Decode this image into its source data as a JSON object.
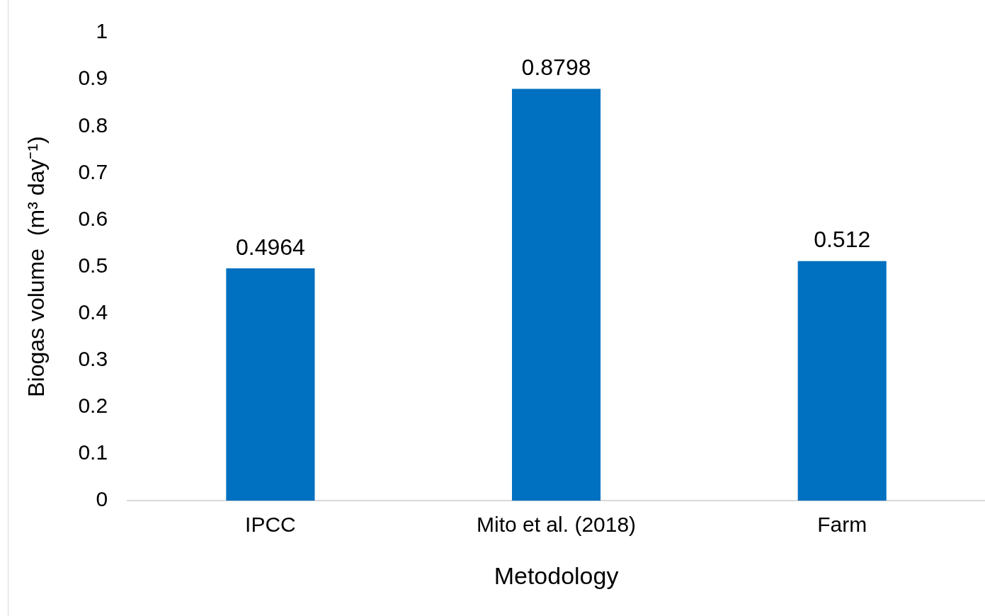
{
  "chart_data": {
    "type": "bar",
    "xlabel": "Metodology",
    "ylabel": "Biogas volume  (m³ day⁻¹)",
    "categories": [
      "IPCC",
      "Mito et al. (2018)",
      "Farm"
    ],
    "values": [
      0.4964,
      0.8798,
      0.512
    ],
    "color": "#0070c0",
    "ylim": [
      0,
      1
    ],
    "yticks": [
      0,
      0.1,
      0.2,
      0.3,
      0.4,
      0.5,
      0.6,
      0.7,
      0.8,
      0.9,
      1
    ],
    "grid": false,
    "legend": false,
    "data_labels": true
  }
}
